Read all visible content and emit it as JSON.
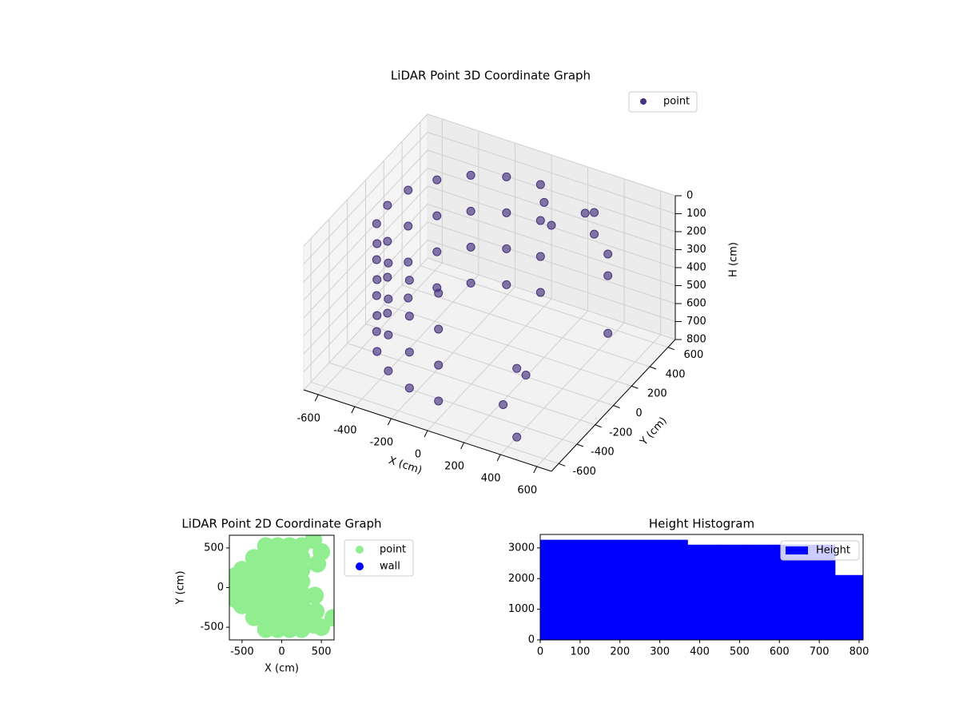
{
  "chart_data": [
    {
      "type": "scatter3d",
      "title": "LiDAR Point 3D Coordinate Graph",
      "xlabel": "X (cm)",
      "ylabel": "Y (cm)",
      "zlabel": "H (cm)",
      "xlim": [
        -680,
        680
      ],
      "ylim": [
        -680,
        680
      ],
      "zlim": [
        800,
        0
      ],
      "xticks": [
        -600,
        -400,
        -200,
        0,
        200,
        400,
        600
      ],
      "yticks": [
        -600,
        -400,
        -200,
        0,
        200,
        400,
        600
      ],
      "zticks": [
        0,
        100,
        200,
        300,
        400,
        500,
        600,
        700,
        800
      ],
      "legend": "upper right",
      "series": [
        {
          "name": "point",
          "color": "#46327e",
          "x": [
            0,
            -173,
            -329,
            -453,
            -533,
            -560,
            -533,
            -453,
            -329,
            -173,
            0,
            0,
            -173,
            -329,
            -453,
            -533,
            -560,
            -533,
            -453,
            -329,
            -173,
            0,
            0,
            -173,
            -329,
            -453,
            -533,
            -560,
            -533,
            -453,
            -329,
            -173,
            0,
            0,
            -173,
            -329,
            -453,
            -533,
            -560,
            -533,
            -453,
            -329,
            -173,
            0,
            300,
            350,
            450,
            500,
            550,
            200,
            300,
            250,
            400,
            300,
            50,
            100
          ],
          "y": [
            560,
            533,
            453,
            329,
            173,
            0,
            -173,
            -329,
            -453,
            -533,
            -560,
            560,
            533,
            453,
            329,
            173,
            0,
            -173,
            -329,
            -453,
            -533,
            -560,
            560,
            533,
            453,
            329,
            173,
            0,
            -173,
            -329,
            -453,
            -533,
            -560,
            560,
            533,
            453,
            329,
            173,
            0,
            -173,
            -329,
            -453,
            -533,
            -560,
            550,
            450,
            400,
            300,
            200,
            -100,
            -200,
            -350,
            -500,
            450,
            500,
            480
          ],
          "z": [
            100,
            100,
            100,
            100,
            100,
            100,
            100,
            100,
            100,
            100,
            100,
            300,
            300,
            300,
            300,
            300,
            300,
            300,
            300,
            300,
            300,
            300,
            500,
            500,
            500,
            500,
            500,
            500,
            500,
            500,
            500,
            500,
            500,
            700,
            700,
            700,
            700,
            700,
            700,
            700,
            700,
            700,
            700,
            700,
            150,
            200,
            250,
            300,
            550,
            700,
            650,
            750,
            800,
            100,
            150,
            250
          ]
        }
      ]
    },
    {
      "type": "scatter",
      "title": "LiDAR Point 2D Coordinate Graph",
      "xlabel": "X (cm)",
      "ylabel": "Y (cm)",
      "xlim": [
        -660,
        660
      ],
      "ylim": [
        -660,
        660
      ],
      "xticks": [
        -500,
        0,
        500
      ],
      "yticks": [
        -500,
        0,
        500
      ],
      "legend": "outside right",
      "series": [
        {
          "name": "point",
          "color": "#90ee90",
          "x": [
            -500,
            -500,
            -500,
            -500,
            -350,
            -350,
            -350,
            -350,
            -350,
            -350,
            -200,
            -200,
            -200,
            -200,
            -200,
            -200,
            -200,
            -200,
            -50,
            -50,
            -50,
            -50,
            -50,
            -50,
            -50,
            -50,
            100,
            100,
            100,
            100,
            100,
            100,
            100,
            100,
            250,
            250,
            250,
            250,
            250,
            250,
            250,
            250,
            -580,
            -580,
            -580,
            400,
            500,
            450,
            420,
            430,
            500,
            650,
            400
          ],
          "y": [
            -225,
            -75,
            75,
            225,
            -375,
            -225,
            -75,
            75,
            225,
            375,
            -525,
            -375,
            -225,
            -75,
            75,
            225,
            375,
            525,
            -525,
            -375,
            -225,
            -75,
            75,
            225,
            375,
            525,
            -525,
            -375,
            -225,
            -75,
            75,
            225,
            375,
            525,
            -525,
            -375,
            -225,
            -75,
            75,
            225,
            375,
            525,
            -150,
            0,
            150,
            600,
            450,
            300,
            -100,
            -300,
            -500,
            -380,
            -470
          ]
        },
        {
          "name": "wall",
          "color": "#0000ff",
          "x": [],
          "y": []
        }
      ]
    },
    {
      "type": "histogram",
      "title": "Height Histogram",
      "bins": [
        0,
        74,
        148,
        222,
        296,
        370,
        444,
        518,
        592,
        666,
        740,
        810
      ],
      "xlim": [
        0,
        810
      ],
      "ylim": [
        0,
        3440
      ],
      "xticks": [
        0,
        100,
        200,
        300,
        400,
        500,
        600,
        700,
        800
      ],
      "yticks": [
        0,
        1000,
        2000,
        3000
      ],
      "legend": "upper right",
      "series": [
        {
          "name": "Height",
          "color": "#0000ff",
          "values": [
            3260,
            3260,
            3260,
            3260,
            3260,
            3100,
            3100,
            3100,
            3100,
            3100,
            2110
          ]
        }
      ]
    }
  ]
}
